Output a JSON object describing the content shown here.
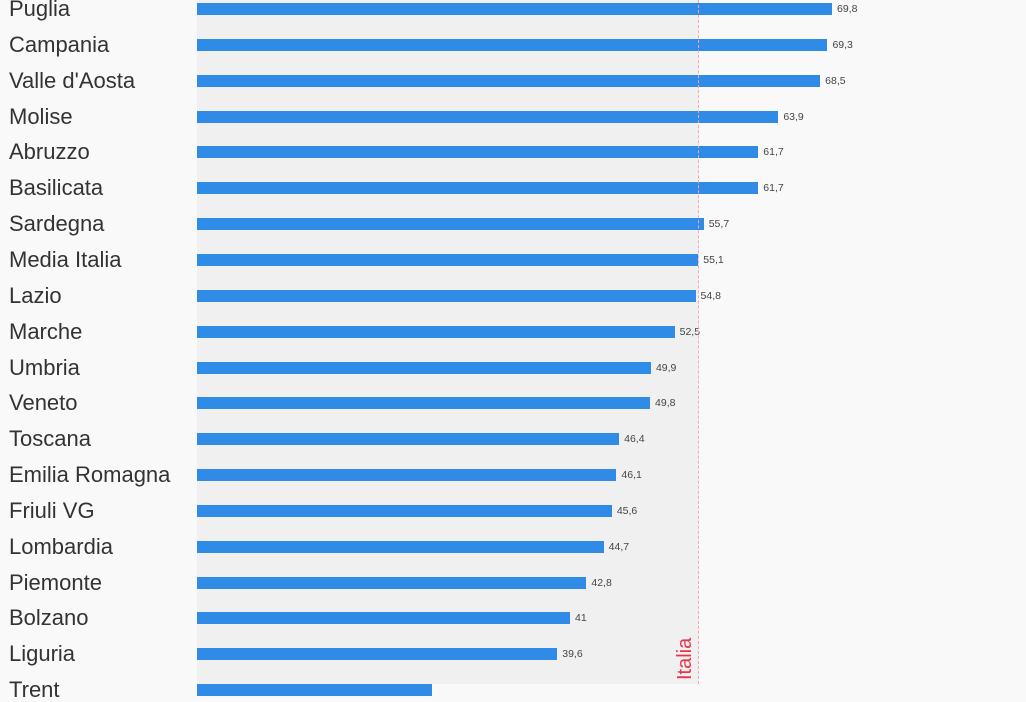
{
  "chart_data": {
    "type": "bar",
    "orientation": "horizontal",
    "categories": [
      "Puglia",
      "Campania",
      "Valle d'Aosta",
      "Molise",
      "Abruzzo",
      "Basilicata",
      "Sardegna",
      "Media Italia",
      "Lazio",
      "Marche",
      "Umbria",
      "Veneto",
      "Toscana",
      "Emilia Romagna",
      "Friuli VG",
      "Lombardia",
      "Piemonte",
      "Bolzano",
      "Liguria",
      "Trento"
    ],
    "values": [
      69.8,
      69.3,
      68.5,
      63.9,
      61.7,
      61.7,
      55.7,
      55.1,
      54.8,
      52.5,
      49.9,
      49.8,
      46.4,
      46.1,
      45.6,
      44.7,
      42.8,
      41,
      39.6,
      25.8
    ],
    "value_labels": [
      "69,8",
      "69,3",
      "68,5",
      "63,9",
      "61,7",
      "61,7",
      "55,7",
      "55,1",
      "54,8",
      "52,5",
      "49,9",
      "49,8",
      "46,4",
      "46,1",
      "45,6",
      "44,7",
      "42,8",
      "41",
      "39,6",
      ""
    ],
    "visible_category_labels": [
      "Puglia",
      "Campania",
      "Valle d'Aosta",
      "Molise",
      "Abruzzo",
      "Basilicata",
      "Sardegna",
      "Media Italia",
      "Lazio",
      "Marche",
      "Umbria",
      "Veneto",
      "Toscana",
      "Emilia Romagna",
      "Friuli VG",
      "Lombardia",
      "Piemonte",
      "Bolzano",
      "Liguria",
      "Trent"
    ],
    "xlim": [
      0,
      80
    ],
    "reference_line": {
      "value": 55.1,
      "label": "Italia",
      "color": "#e8334a"
    },
    "colors": {
      "bar": "#2f8be6",
      "plot_background": "#f0f0f0",
      "page_background": "#f9f9f9"
    },
    "grid": false,
    "legend": "none"
  }
}
